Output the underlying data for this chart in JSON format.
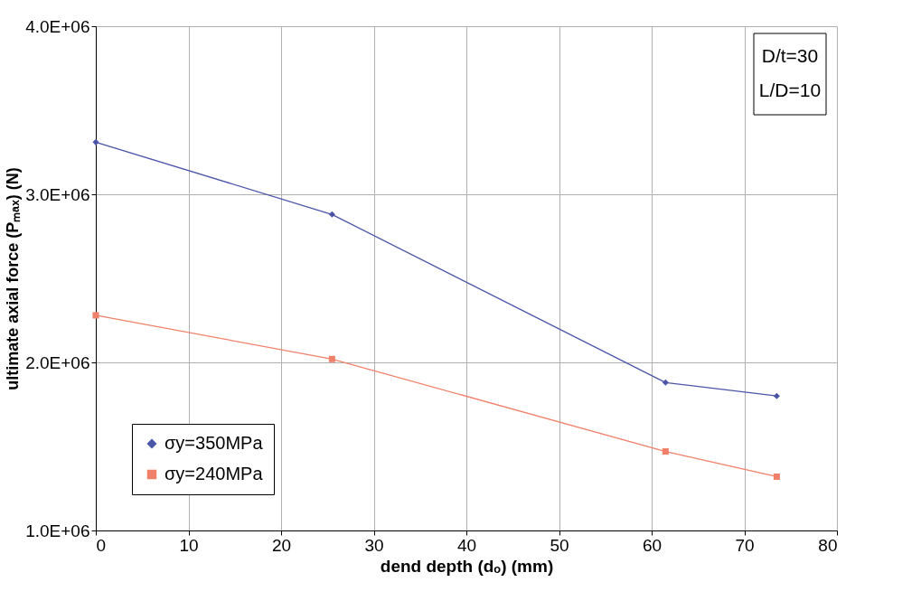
{
  "chart_data": {
    "type": "line",
    "xlabel": "dend depth (dₒ) (mm)",
    "ylabel": "ultimate axial force (Pₘₐₓ) (N)",
    "xlim": [
      0,
      80
    ],
    "xticks": [
      0,
      10,
      20,
      30,
      40,
      50,
      60,
      70,
      80
    ],
    "ylim": [
      1000000,
      4000000
    ],
    "yticks": [
      {
        "value": 1000000,
        "label": "1.0E+06"
      },
      {
        "value": 2000000,
        "label": "2.0E+06"
      },
      {
        "value": 3000000,
        "label": "3.0E+06"
      },
      {
        "value": 4000000,
        "label": "4.0E+06"
      }
    ],
    "series": [
      {
        "name": "σy=350MPa",
        "color": "#4a55a8",
        "marker": "diamond",
        "x": [
          0,
          25.5,
          61.5,
          73.5
        ],
        "values": [
          3310000,
          2880000,
          1880000,
          1800000
        ]
      },
      {
        "name": "σy=240MPa",
        "color": "#f0806a",
        "marker": "square",
        "x": [
          0,
          25.5,
          61.5,
          73.5
        ],
        "values": [
          2280000,
          2020000,
          1470000,
          1320000
        ]
      }
    ],
    "annotations": [
      "D/t=30",
      "L/D=10"
    ],
    "grid": true,
    "legend": "bottom left",
    "marker": "diamond",
    "line_style": "solid"
  }
}
